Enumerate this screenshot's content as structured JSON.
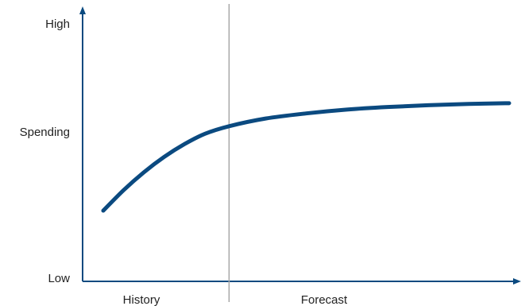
{
  "chart_data": {
    "type": "line",
    "title": "",
    "xlabel": "",
    "ylabel": "Spending",
    "y_tick_labels": {
      "top": "High",
      "bottom": "Low"
    },
    "x_region_labels": {
      "left": "History",
      "right": "Forecast"
    },
    "xlim": [
      0,
      100
    ],
    "ylim": [
      0,
      100
    ],
    "divider_x": 31,
    "series": [
      {
        "x": [
          0,
          5,
          10,
          15,
          20,
          25,
          31,
          40,
          50,
          60,
          70,
          80,
          90,
          100
        ],
        "values": [
          27,
          35,
          42,
          48,
          53,
          57,
          60,
          63,
          65,
          66.5,
          67.5,
          68.2,
          68.7,
          69
        ]
      }
    ],
    "colors": {
      "line": "#0b4a80",
      "axis": "#0b4a80",
      "divider": "#a6a6a6"
    },
    "grid": false,
    "legend": "none"
  }
}
